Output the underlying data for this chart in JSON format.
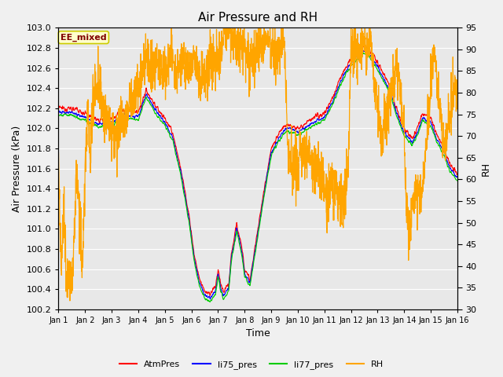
{
  "title": "Air Pressure and RH",
  "xlabel": "Time",
  "ylabel_left": "Air Pressure (kPa)",
  "ylabel_right": "RH",
  "ylim_left": [
    100.2,
    103.0
  ],
  "ylim_right": [
    30,
    95
  ],
  "yticks_left": [
    100.2,
    100.4,
    100.6,
    100.8,
    101.0,
    101.2,
    101.4,
    101.6,
    101.8,
    102.0,
    102.2,
    102.4,
    102.6,
    102.8,
    103.0
  ],
  "yticks_right": [
    30,
    35,
    40,
    45,
    50,
    55,
    60,
    65,
    70,
    75,
    80,
    85,
    90,
    95
  ],
  "xtick_labels": [
    "Jan 1",
    "Jan 2",
    "Jan 3",
    "Jan 4",
    "Jan 5",
    "Jan 6",
    "Jan 7",
    "Jan 8",
    "Jan 9",
    "Jan 10",
    "Jan 11",
    "Jan 12",
    "Jan 13",
    "Jan 14",
    "Jan 15",
    "Jan 16"
  ],
  "colors": {
    "AtmPres": "#ff0000",
    "li75_pres": "#0000ff",
    "li77_pres": "#00cc00",
    "RH": "#ffa500"
  },
  "line_widths": {
    "AtmPres": 0.8,
    "li75_pres": 0.8,
    "li77_pres": 0.8,
    "RH": 0.9
  },
  "bg_color": "#e8e8e8",
  "fig_bg_color": "#f0f0f0",
  "annotation_text": "EE_mixed",
  "annotation_color": "#800000",
  "annotation_bg": "#ffffcc",
  "annotation_border": "#cccc00",
  "figsize": [
    6.4,
    4.8
  ],
  "dpi": 100
}
